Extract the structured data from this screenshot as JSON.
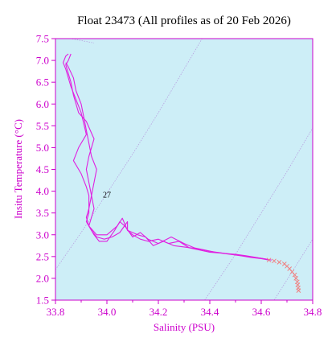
{
  "chart_data": {
    "type": "line",
    "title": "Float 23473  (All profiles as of 20 Feb 2026)",
    "xlabel": "Salinity (PSU)",
    "ylabel": "Insitu Temperature (°C)",
    "xlim": [
      33.8,
      34.8
    ],
    "ylim": [
      1.5,
      7.5
    ],
    "xticks": [
      "33.8",
      "34.0",
      "34.2",
      "34.4",
      "34.6",
      "34.8"
    ],
    "yticks": [
      "1.5",
      "2.0",
      "2.5",
      "3.0",
      "3.5",
      "4.0",
      "4.5",
      "5.0",
      "5.5",
      "6.0",
      "6.5",
      "7.0",
      "7.5"
    ],
    "grid": false,
    "colors": {
      "plot_background": "#cdeef7",
      "profile_line": "#e020e0",
      "deep_markers": "#f08080",
      "axis": "#cc00cc",
      "density_contours": "#b8a0e0"
    },
    "density_contours": [
      {
        "label": "",
        "points": [
          [
            33.8,
            7.55
          ],
          [
            33.86,
            7.5
          ],
          [
            33.95,
            7.4
          ]
        ]
      },
      {
        "label": "27",
        "points": [
          [
            33.8,
            2.2
          ],
          [
            33.9,
            3.05
          ],
          [
            34.0,
            3.95
          ],
          [
            34.1,
            4.85
          ],
          [
            34.2,
            5.8
          ],
          [
            34.3,
            6.8
          ],
          [
            34.37,
            7.5
          ]
        ]
      },
      {
        "label": "",
        "points": [
          [
            34.38,
            1.5
          ],
          [
            34.5,
            2.55
          ],
          [
            34.6,
            3.5
          ],
          [
            34.7,
            4.45
          ],
          [
            34.8,
            5.45
          ]
        ]
      },
      {
        "label": "",
        "points": [
          [
            34.65,
            1.5
          ],
          [
            34.72,
            2.15
          ],
          [
            34.8,
            2.9
          ]
        ]
      }
    ],
    "series": [
      {
        "values": [
          [
            33.85,
            7.15
          ],
          [
            33.84,
            7.1
          ],
          [
            33.83,
            6.95
          ],
          [
            33.84,
            6.8
          ],
          [
            33.86,
            6.4
          ],
          [
            33.88,
            6.1
          ],
          [
            33.9,
            5.8
          ],
          [
            33.91,
            5.55
          ],
          [
            33.92,
            5.3
          ],
          [
            33.89,
            5.0
          ],
          [
            33.87,
            4.7
          ],
          [
            33.9,
            4.4
          ],
          [
            33.92,
            4.1
          ],
          [
            33.93,
            3.9
          ],
          [
            33.93,
            3.5
          ],
          [
            33.92,
            3.3
          ],
          [
            33.94,
            3.1
          ],
          [
            33.96,
            2.95
          ],
          [
            33.99,
            2.9
          ],
          [
            34.02,
            2.95
          ],
          [
            34.05,
            3.05
          ],
          [
            34.08,
            3.3
          ],
          [
            34.08,
            3.1
          ],
          [
            34.1,
            3.0
          ],
          [
            34.13,
            2.9
          ],
          [
            34.16,
            2.85
          ],
          [
            34.2,
            2.9
          ],
          [
            34.24,
            2.8
          ],
          [
            34.28,
            2.85
          ],
          [
            34.32,
            2.7
          ],
          [
            34.36,
            2.65
          ],
          [
            34.4,
            2.6
          ],
          [
            34.44,
            2.58
          ],
          [
            34.48,
            2.55
          ],
          [
            34.52,
            2.52
          ],
          [
            34.56,
            2.48
          ],
          [
            34.6,
            2.45
          ],
          [
            34.63,
            2.42
          ]
        ]
      },
      {
        "values": [
          [
            33.86,
            7.15
          ],
          [
            33.85,
            7.0
          ],
          [
            33.84,
            6.9
          ],
          [
            33.86,
            6.5
          ],
          [
            33.87,
            6.2
          ],
          [
            33.89,
            5.8
          ],
          [
            33.92,
            5.6
          ],
          [
            33.95,
            5.2
          ],
          [
            33.93,
            4.8
          ],
          [
            33.92,
            4.5
          ],
          [
            33.93,
            4.2
          ],
          [
            33.94,
            3.9
          ],
          [
            33.95,
            3.6
          ],
          [
            33.94,
            3.4
          ],
          [
            33.93,
            3.2
          ],
          [
            33.95,
            3.0
          ],
          [
            33.97,
            2.85
          ],
          [
            34.0,
            2.85
          ],
          [
            34.03,
            3.1
          ],
          [
            34.05,
            3.3
          ],
          [
            34.07,
            3.2
          ],
          [
            34.1,
            2.95
          ],
          [
            34.13,
            3.05
          ],
          [
            34.16,
            2.9
          ],
          [
            34.2,
            2.8
          ],
          [
            34.25,
            2.95
          ],
          [
            34.3,
            2.8
          ],
          [
            34.34,
            2.7
          ],
          [
            34.38,
            2.65
          ],
          [
            34.42,
            2.6
          ],
          [
            34.46,
            2.57
          ],
          [
            34.5,
            2.55
          ],
          [
            34.54,
            2.52
          ],
          [
            34.58,
            2.48
          ],
          [
            34.62,
            2.44
          ]
        ]
      },
      {
        "values": [
          [
            33.84,
            6.95
          ],
          [
            33.85,
            6.85
          ],
          [
            33.87,
            6.6
          ],
          [
            33.88,
            6.3
          ],
          [
            33.9,
            6.0
          ],
          [
            33.91,
            5.7
          ],
          [
            33.92,
            5.4
          ],
          [
            33.93,
            5.1
          ],
          [
            33.94,
            4.8
          ],
          [
            33.96,
            4.5
          ],
          [
            33.95,
            4.2
          ],
          [
            33.94,
            3.9
          ],
          [
            33.93,
            3.6
          ],
          [
            33.92,
            3.4
          ],
          [
            33.93,
            3.2
          ],
          [
            33.96,
            3.0
          ],
          [
            34.0,
            3.0
          ],
          [
            34.04,
            3.2
          ],
          [
            34.06,
            3.38
          ],
          [
            34.08,
            3.1
          ],
          [
            34.12,
            3.0
          ],
          [
            34.15,
            2.95
          ],
          [
            34.18,
            2.75
          ],
          [
            34.22,
            2.85
          ],
          [
            34.26,
            2.75
          ],
          [
            34.3,
            2.72
          ],
          [
            34.35,
            2.68
          ],
          [
            34.4,
            2.62
          ],
          [
            34.45,
            2.58
          ],
          [
            34.5,
            2.54
          ],
          [
            34.55,
            2.5
          ],
          [
            34.6,
            2.46
          ],
          [
            34.64,
            2.42
          ]
        ]
      }
    ],
    "deep_points": [
      [
        34.63,
        2.42
      ],
      [
        34.65,
        2.4
      ],
      [
        34.67,
        2.37
      ],
      [
        34.69,
        2.33
      ],
      [
        34.7,
        2.28
      ],
      [
        34.71,
        2.22
      ],
      [
        34.72,
        2.15
      ],
      [
        34.73,
        2.08
      ],
      [
        34.735,
        2.0
      ],
      [
        34.74,
        1.92
      ],
      [
        34.742,
        1.85
      ],
      [
        34.744,
        1.78
      ],
      [
        34.745,
        1.72
      ]
    ]
  }
}
